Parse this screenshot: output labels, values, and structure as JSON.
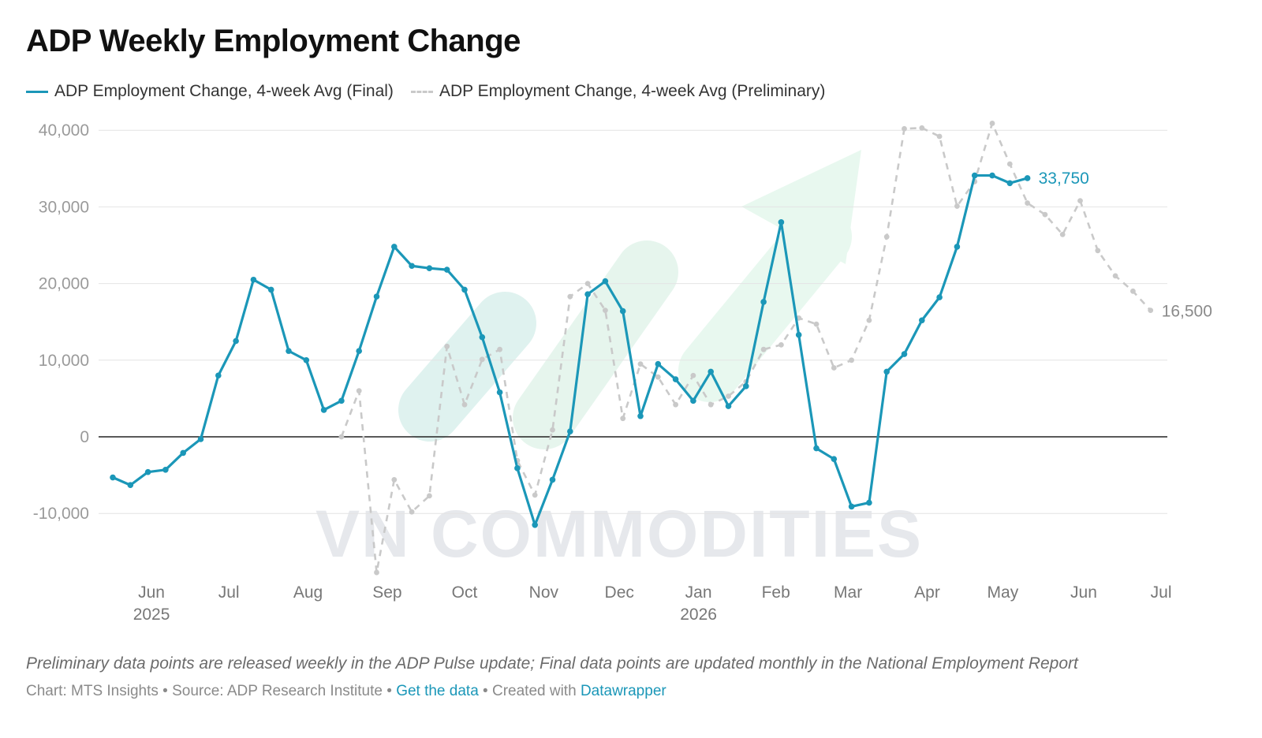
{
  "title": "ADP Weekly Employment Change",
  "legend": {
    "final": "ADP Employment Change, 4-week Avg (Final)",
    "preliminary": "ADP Employment Change, 4-week Avg (Preliminary)"
  },
  "watermark": "VN COMMODITIES",
  "footnote": "Preliminary data points are released weekly in the ADP Pulse update; Final data points are updated monthly in the National Employment Report",
  "credits": {
    "chart_by": "Chart: MTS Insights",
    "sep1": " • ",
    "source": "Source: ADP Research Institute",
    "sep2": " • ",
    "get_data": "Get the data",
    "sep3": " • ",
    "created_with": "Created with ",
    "datawrapper": "Datawrapper"
  },
  "colors": {
    "final": "#1b97b8",
    "preliminary": "#c9c9c9",
    "arrow": "#a8e6c3",
    "zero_line": "#222222",
    "grid": "#e4e4e4"
  },
  "chart_data": {
    "type": "line",
    "x_unit": "week (index from late May 2025)",
    "y_ticks": [
      40000,
      30000,
      20000,
      10000,
      0,
      -10000
    ],
    "y_tick_labels": [
      "40,000",
      "30,000",
      "20,000",
      "10,000",
      "0",
      "-10,000"
    ],
    "ylim": [
      -18000,
      41000
    ],
    "x_ticks": [
      {
        "x": 2.2,
        "label": "Jun",
        "year": "2025"
      },
      {
        "x": 6.6,
        "label": "Jul",
        "year": ""
      },
      {
        "x": 11.1,
        "label": "Aug",
        "year": ""
      },
      {
        "x": 15.6,
        "label": "Sep",
        "year": ""
      },
      {
        "x": 20.0,
        "label": "Oct",
        "year": ""
      },
      {
        "x": 24.5,
        "label": "Nov",
        "year": ""
      },
      {
        "x": 28.8,
        "label": "Dec",
        "year": ""
      },
      {
        "x": 33.3,
        "label": "Jan",
        "year": "2026"
      },
      {
        "x": 37.7,
        "label": "Feb",
        "year": ""
      },
      {
        "x": 41.8,
        "label": "Mar",
        "year": ""
      },
      {
        "x": 46.3,
        "label": "Apr",
        "year": ""
      },
      {
        "x": 50.6,
        "label": "May",
        "year": ""
      },
      {
        "x": 55.2,
        "label": "Jun",
        "year": ""
      },
      {
        "x": 59.6,
        "label": "Jul",
        "year": ""
      }
    ],
    "series": [
      {
        "name": "ADP Employment Change, 4-week Avg (Final)",
        "end_label": "33,750",
        "points": [
          [
            0,
            -5300
          ],
          [
            1,
            -6300
          ],
          [
            2,
            -4600
          ],
          [
            3,
            -4300
          ],
          [
            4,
            -2100
          ],
          [
            5,
            -300
          ],
          [
            6,
            8000
          ],
          [
            7,
            12500
          ],
          [
            8,
            20500
          ],
          [
            9,
            19200
          ],
          [
            10,
            11200
          ],
          [
            11,
            10000
          ],
          [
            12,
            3500
          ],
          [
            13,
            4700
          ],
          [
            14,
            11200
          ],
          [
            15,
            18300
          ],
          [
            16,
            24800
          ],
          [
            17,
            22300
          ],
          [
            18,
            22000
          ],
          [
            19,
            21800
          ],
          [
            20,
            19200
          ],
          [
            21,
            13000
          ],
          [
            22,
            5800
          ],
          [
            23,
            -4100
          ],
          [
            24,
            -11500
          ],
          [
            25,
            -5600
          ],
          [
            26,
            700
          ],
          [
            27,
            18600
          ],
          [
            28,
            20300
          ],
          [
            29,
            16400
          ],
          [
            30,
            2700
          ],
          [
            31,
            9500
          ],
          [
            32,
            7500
          ],
          [
            33,
            4700
          ],
          [
            34,
            8500
          ],
          [
            35,
            4000
          ],
          [
            36,
            6600
          ],
          [
            37,
            17600
          ],
          [
            38,
            28000
          ],
          [
            39,
            13300
          ],
          [
            40,
            -1500
          ],
          [
            41,
            -2900
          ],
          [
            42,
            -9100
          ],
          [
            43,
            -8600
          ],
          [
            44,
            8500
          ],
          [
            45,
            10800
          ],
          [
            46,
            15200
          ],
          [
            47,
            18200
          ],
          [
            48,
            24800
          ],
          [
            49,
            34100
          ],
          [
            50,
            34100
          ],
          [
            51,
            33100
          ],
          [
            52,
            33750
          ]
        ]
      },
      {
        "name": "ADP Employment Change, 4-week Avg (Preliminary)",
        "end_label": "16,500",
        "points": [
          [
            13,
            0
          ],
          [
            14,
            6000
          ],
          [
            15,
            -17700
          ],
          [
            16,
            -5600
          ],
          [
            17,
            -9800
          ],
          [
            18,
            -7700
          ],
          [
            19,
            11800
          ],
          [
            20,
            4200
          ],
          [
            21,
            10100
          ],
          [
            22,
            11400
          ],
          [
            23,
            -3100
          ],
          [
            24,
            -7600
          ],
          [
            25,
            900
          ],
          [
            26,
            18300
          ],
          [
            27,
            20000
          ],
          [
            28,
            16500
          ],
          [
            29,
            2400
          ],
          [
            30,
            9500
          ],
          [
            31,
            7800
          ],
          [
            32,
            4200
          ],
          [
            33,
            8000
          ],
          [
            34,
            4200
          ],
          [
            35,
            5300
          ],
          [
            36,
            7200
          ],
          [
            37,
            11400
          ],
          [
            38,
            12000
          ],
          [
            39,
            15500
          ],
          [
            40,
            14700
          ],
          [
            41,
            9000
          ],
          [
            42,
            10000
          ],
          [
            43,
            15200
          ],
          [
            44,
            26100
          ],
          [
            45,
            40200
          ],
          [
            46,
            40300
          ],
          [
            47,
            39200
          ],
          [
            48,
            30100
          ],
          [
            49,
            33300
          ],
          [
            50,
            40900
          ],
          [
            51,
            35600
          ],
          [
            52,
            30500
          ],
          [
            53,
            29000
          ],
          [
            54,
            26400
          ],
          [
            55,
            30800
          ],
          [
            56,
            24300
          ],
          [
            57,
            21000
          ],
          [
            58,
            19000
          ],
          [
            59,
            16500
          ]
        ]
      }
    ]
  }
}
